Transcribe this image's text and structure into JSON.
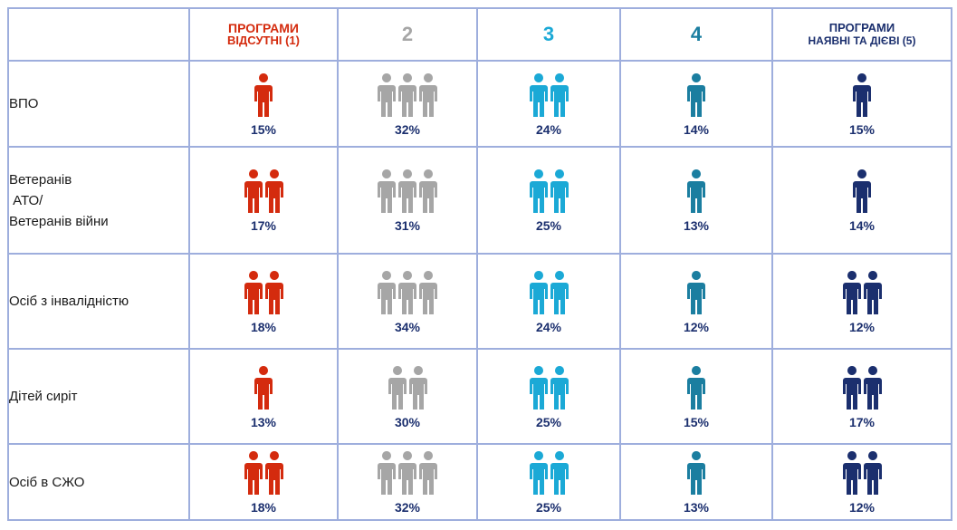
{
  "colors": {
    "red": "#d42b0e",
    "grey": "#a6a6a6",
    "cyan": "#1ba9d6",
    "teal": "#1b7ea0",
    "navy": "#1b2f6e",
    "border": "#9eaedd"
  },
  "header": {
    "col1_line1": "ПРОГРАМИ",
    "col1_line2": "ВІДСУТНІ (1)",
    "col2": "2",
    "col3": "3",
    "col4": "4",
    "col5_line1": "ПРОГРАМИ",
    "col5_line2": "НАЯВНІ ТА ДІЄВІ (5)"
  },
  "chart_data": {
    "type": "table",
    "columns": [
      "ПРОГРАМИ ВІДСУТНІ (1)",
      "2",
      "3",
      "4",
      "ПРОГРАМИ НАЯВНІ ТА ДІЄВІ (5)"
    ],
    "column_colors": [
      "red",
      "grey",
      "cyan",
      "teal",
      "navy"
    ],
    "rows": [
      {
        "label_lines": [
          "ВПО"
        ],
        "values": [
          "15%",
          "32%",
          "24%",
          "14%",
          "15%"
        ],
        "icons": [
          1,
          3,
          2,
          1,
          1
        ]
      },
      {
        "label_lines": [
          "Ветеранів",
          " АТО/",
          "Ветеранів війни"
        ],
        "values": [
          "17%",
          "31%",
          "25%",
          "13%",
          "14%"
        ],
        "icons": [
          2,
          3,
          2,
          1,
          1
        ]
      },
      {
        "label_lines": [
          "Осіб з інвалідністю"
        ],
        "values": [
          "18%",
          "34%",
          "24%",
          "12%",
          "12%"
        ],
        "icons": [
          2,
          3,
          2,
          1,
          2
        ]
      },
      {
        "label_lines": [
          "Дітей сиріт"
        ],
        "values": [
          "13%",
          "30%",
          "25%",
          "15%",
          "17%"
        ],
        "icons": [
          1,
          2,
          2,
          1,
          2
        ]
      },
      {
        "label_lines": [
          "Осіб в СЖО"
        ],
        "values": [
          "18%",
          "32%",
          "25%",
          "13%",
          "12%"
        ],
        "icons": [
          2,
          3,
          2,
          1,
          2
        ]
      }
    ]
  }
}
